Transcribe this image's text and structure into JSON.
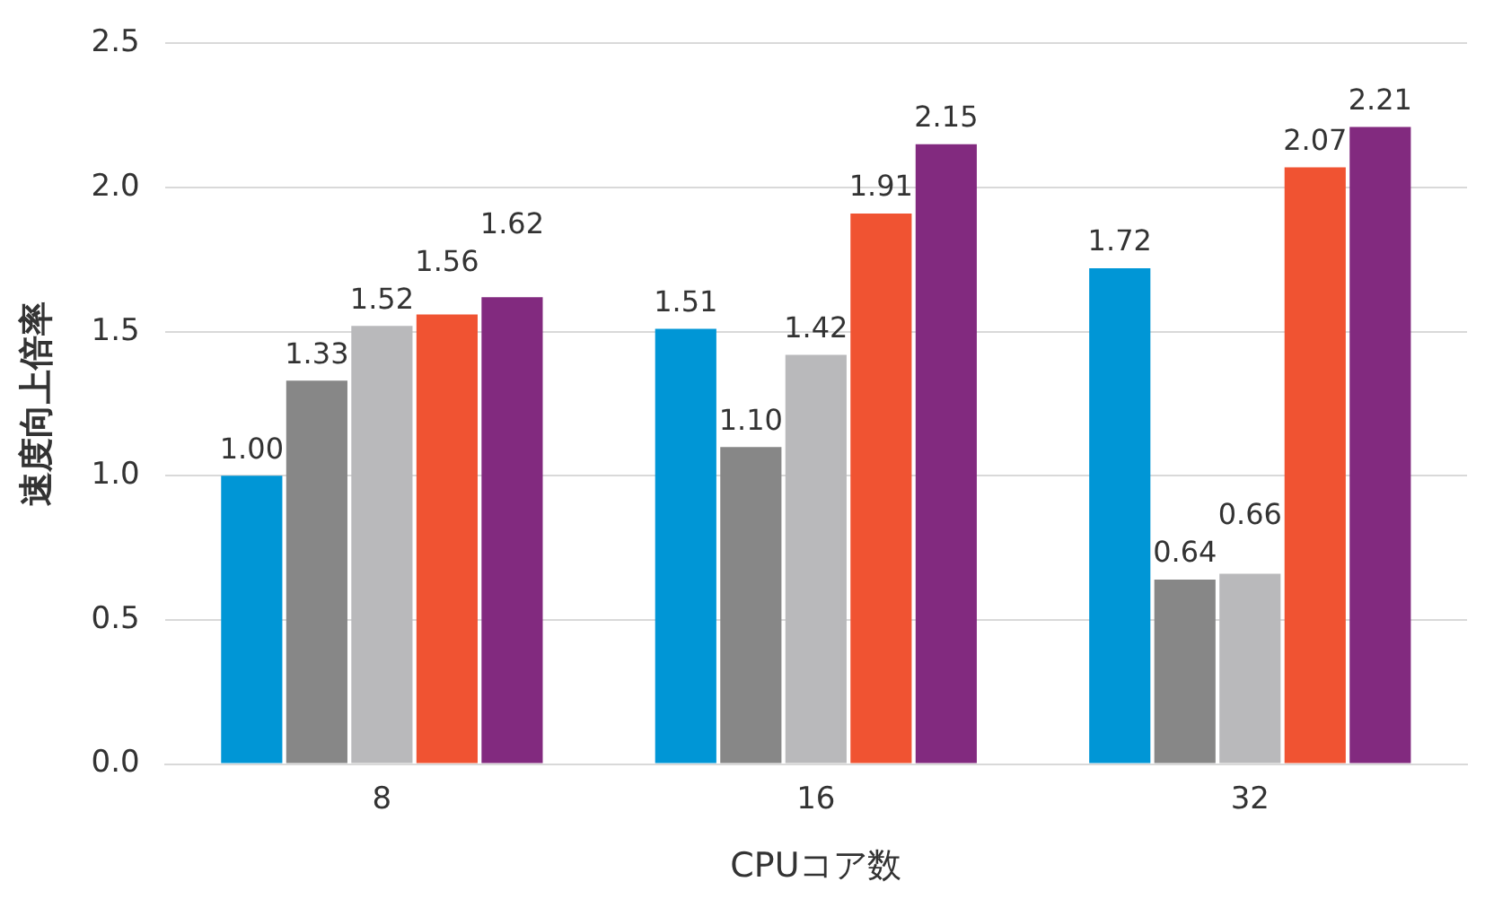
{
  "chart_data": {
    "type": "bar",
    "xlabel": "CPUコア数",
    "ylabel": "速度向上倍率",
    "categories": [
      "8",
      "16",
      "32"
    ],
    "series": [
      {
        "color": "#0096d6",
        "values": [
          1.0,
          1.51,
          1.72
        ],
        "value_labels": [
          "1.00",
          "1.51",
          "1.72"
        ]
      },
      {
        "color": "#878787",
        "values": [
          1.33,
          1.1,
          0.64
        ],
        "value_labels": [
          "1.33",
          "1.10",
          "0.64"
        ]
      },
      {
        "color": "#b9b9bb",
        "values": [
          1.52,
          1.42,
          0.66
        ],
        "value_labels": [
          "1.52",
          "1.42",
          "0.66"
        ]
      },
      {
        "color": "#f05332",
        "values": [
          1.56,
          1.91,
          2.07
        ],
        "value_labels": [
          "1.56",
          "1.91",
          "2.07"
        ]
      },
      {
        "color": "#822a7f",
        "values": [
          1.62,
          2.15,
          2.21
        ],
        "value_labels": [
          "1.62",
          "2.15",
          "2.21"
        ]
      }
    ],
    "ylim": [
      0,
      2.5
    ],
    "yticks": [
      {
        "value": 0,
        "label": "0.0"
      },
      {
        "value": 0.5,
        "label": "0.5"
      },
      {
        "value": 1,
        "label": "1.0"
      },
      {
        "value": 1.5,
        "label": "1.5"
      },
      {
        "value": 2,
        "label": "2.0"
      },
      {
        "value": 2.5,
        "label": "2.5"
      }
    ],
    "grid": "y",
    "legend": false
  }
}
